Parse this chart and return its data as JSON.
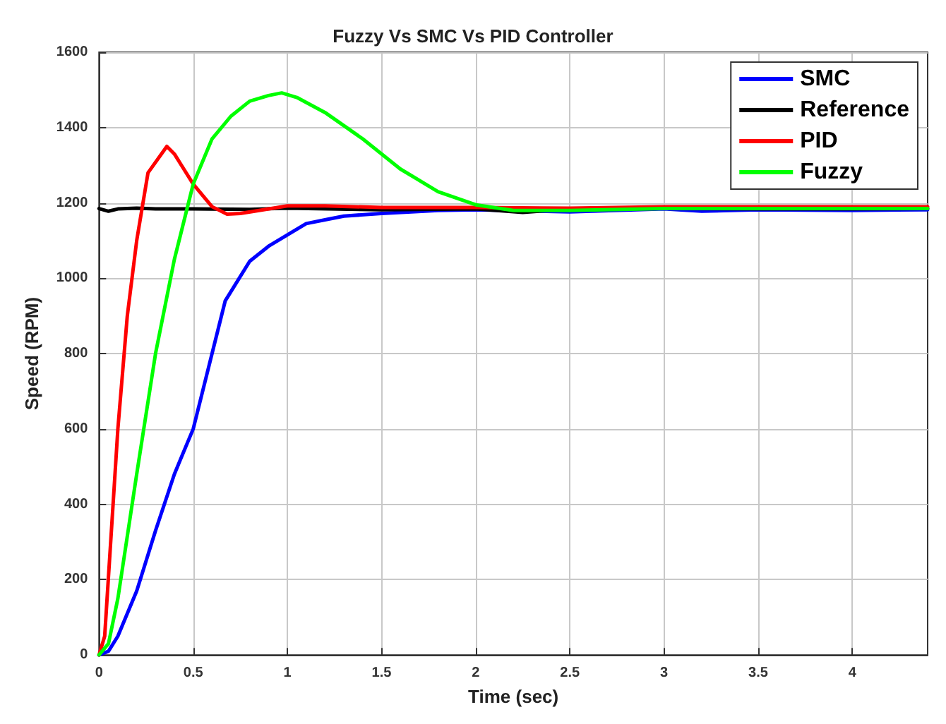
{
  "chart_data": {
    "type": "line",
    "title": "Fuzzy Vs SMC Vs PID Controller",
    "xlabel": "Time (sec)",
    "ylabel": "Speed (RPM)",
    "xlim": [
      0,
      4.4
    ],
    "xticks": [
      0,
      0.5,
      1,
      1.5,
      2,
      2.5,
      3,
      3.5,
      4
    ],
    "ylim": [
      0,
      1600
    ],
    "yticks": [
      0,
      200,
      400,
      600,
      800,
      1000,
      1200,
      1400,
      1600
    ],
    "grid": true,
    "legend": "top right",
    "marker": "none",
    "line_style": "solid",
    "series": [
      {
        "name": "SMC",
        "color": "#0000ff",
        "x": [
          0,
          0.05,
          0.1,
          0.2,
          0.3,
          0.4,
          0.5,
          0.6,
          0.67,
          0.8,
          0.9,
          1.0,
          1.1,
          1.2,
          1.3,
          1.5,
          1.8,
          2,
          2.5,
          3,
          3.2,
          3.5,
          4,
          4.4
        ],
        "values": [
          0,
          10,
          50,
          170,
          330,
          480,
          600,
          800,
          940,
          1045,
          1085,
          1115,
          1145,
          1155,
          1165,
          1172,
          1180,
          1182,
          1176,
          1184,
          1178,
          1182,
          1180,
          1182
        ]
      },
      {
        "name": "Reference",
        "color": "#000000",
        "x": [
          0,
          0.05,
          0.1,
          0.2,
          0.3,
          0.5,
          0.8,
          1,
          1.5,
          2,
          2.25,
          2.5,
          3,
          3.5,
          4,
          4.4
        ],
        "values": [
          1185,
          1178,
          1184,
          1186,
          1184,
          1184,
          1183,
          1186,
          1182,
          1184,
          1175,
          1184,
          1185,
          1184,
          1184,
          1185
        ]
      },
      {
        "name": "PID",
        "color": "#ff0000",
        "x": [
          0,
          0.03,
          0.1,
          0.15,
          0.2,
          0.26,
          0.36,
          0.4,
          0.5,
          0.6,
          0.68,
          0.75,
          0.85,
          1.0,
          1.2,
          1.5,
          2,
          2.5,
          3,
          4.4
        ],
        "values": [
          0,
          50,
          600,
          900,
          1100,
          1280,
          1350,
          1330,
          1250,
          1190,
          1170,
          1172,
          1180,
          1192,
          1192,
          1188,
          1188,
          1186,
          1190,
          1190
        ]
      },
      {
        "name": "Fuzzy",
        "color": "#00ff00",
        "x": [
          0,
          0.05,
          0.1,
          0.2,
          0.3,
          0.4,
          0.5,
          0.6,
          0.7,
          0.8,
          0.9,
          0.97,
          1.05,
          1.2,
          1.4,
          1.6,
          1.8,
          2.0,
          2.2,
          2.5,
          3,
          4.4
        ],
        "values": [
          0,
          30,
          150,
          480,
          800,
          1050,
          1250,
          1370,
          1430,
          1470,
          1485,
          1492,
          1480,
          1440,
          1370,
          1290,
          1230,
          1195,
          1180,
          1180,
          1185,
          1185
        ]
      }
    ]
  }
}
